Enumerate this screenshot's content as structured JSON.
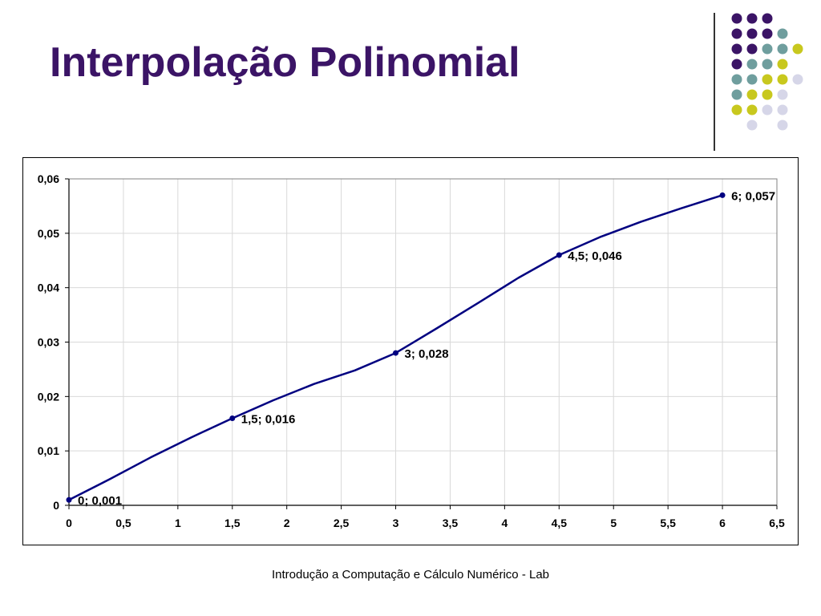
{
  "slide": {
    "title": "Interpolação Polinomial",
    "footer": "Introdução a Computação e Cálculo Numérico - Lab"
  },
  "colors": {
    "title": "#3b1466",
    "series": "#000080",
    "grid": "#d9d9d9",
    "dot_purple": "#3b1466",
    "dot_teal": "#6f9e9e",
    "dot_yellow": "#c8c81e",
    "dot_lavender": "#d6d6e8"
  },
  "decoration": {
    "dot_grid": [
      [
        "purple",
        "purple",
        "purple",
        null,
        null
      ],
      [
        "purple",
        "purple",
        "purple",
        "teal",
        null
      ],
      [
        "purple",
        "purple",
        "teal",
        "teal",
        "yellow"
      ],
      [
        "purple",
        "teal",
        "teal",
        "yellow",
        null
      ],
      [
        "teal",
        "teal",
        "yellow",
        "yellow",
        "lavender"
      ],
      [
        "teal",
        "yellow",
        "yellow",
        "lavender",
        null
      ],
      [
        "yellow",
        "yellow",
        "lavender",
        "lavender",
        null
      ],
      [
        null,
        "lavender",
        null,
        "lavender",
        null
      ]
    ]
  },
  "chart_data": {
    "type": "line",
    "title": "",
    "xlabel": "",
    "ylabel": "",
    "xlim": [
      0,
      6.5
    ],
    "ylim": [
      0,
      0.06
    ],
    "x_ticks": [
      "0",
      "0,5",
      "1",
      "1,5",
      "2",
      "2,5",
      "3",
      "3,5",
      "4",
      "4,5",
      "5",
      "5,5",
      "6",
      "6,5"
    ],
    "y_ticks": [
      "0",
      "0,01",
      "0,02",
      "0,03",
      "0,04",
      "0,05",
      "0,06"
    ],
    "grid": true,
    "legend": "none",
    "series": [
      {
        "markers": [
          {
            "x": 0,
            "y": 0.001,
            "label": "0; 0,001"
          },
          {
            "x": 1.5,
            "y": 0.016,
            "label": "1,5; 0,016"
          },
          {
            "x": 3,
            "y": 0.028,
            "label": "3; 0,028"
          },
          {
            "x": 4.5,
            "y": 0.046,
            "label": "4,5; 0,046"
          },
          {
            "x": 6,
            "y": 0.057,
            "label": "6; 0,057"
          }
        ],
        "curve": [
          {
            "x": 0,
            "y": 0.001
          },
          {
            "x": 0.375,
            "y": 0.0048
          },
          {
            "x": 0.75,
            "y": 0.0088
          },
          {
            "x": 1.125,
            "y": 0.0125
          },
          {
            "x": 1.5,
            "y": 0.016
          },
          {
            "x": 1.875,
            "y": 0.0193
          },
          {
            "x": 2.25,
            "y": 0.0223
          },
          {
            "x": 2.625,
            "y": 0.0248
          },
          {
            "x": 3,
            "y": 0.028
          },
          {
            "x": 3.375,
            "y": 0.0325
          },
          {
            "x": 3.75,
            "y": 0.0371
          },
          {
            "x": 4.125,
            "y": 0.0418
          },
          {
            "x": 4.5,
            "y": 0.046
          },
          {
            "x": 4.875,
            "y": 0.0493
          },
          {
            "x": 5.25,
            "y": 0.0521
          },
          {
            "x": 5.625,
            "y": 0.0546
          },
          {
            "x": 6,
            "y": 0.057
          }
        ]
      }
    ]
  }
}
